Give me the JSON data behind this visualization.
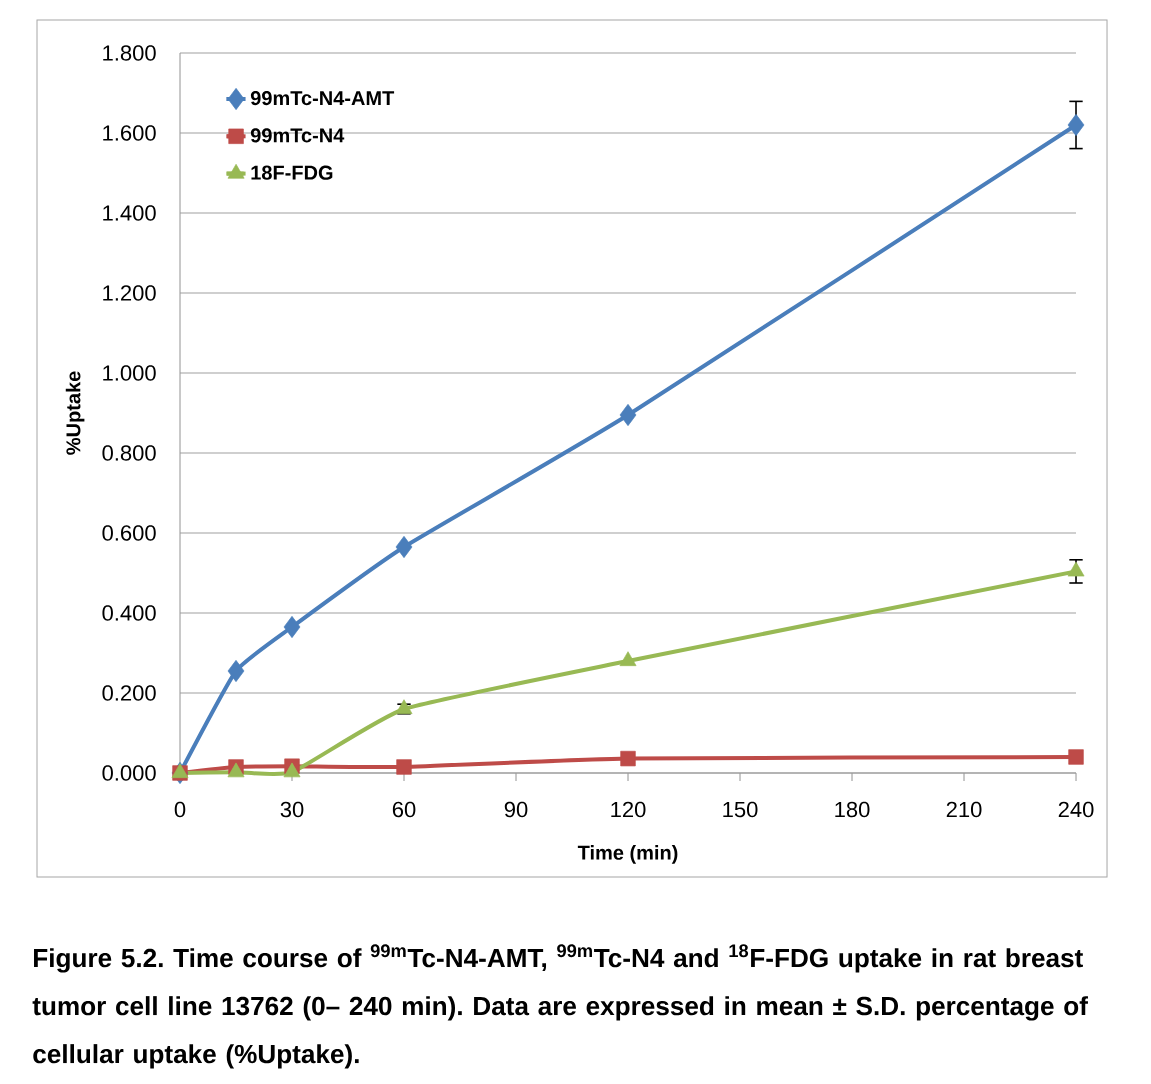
{
  "chart_data": {
    "type": "line",
    "xlabel": "Time (min)",
    "ylabel": "%Uptake",
    "x": [
      0,
      15,
      30,
      60,
      120,
      240
    ],
    "series": [
      {
        "name": "99mTc-N4-AMT",
        "color": "#4a7ebb",
        "marker": "diamond",
        "values": [
          0.0,
          0.255,
          0.365,
          0.565,
          0.895,
          1.62
        ],
        "errors": [
          null,
          null,
          null,
          null,
          null,
          0.059
        ]
      },
      {
        "name": "99mTc-N4",
        "color": "#be4b48",
        "marker": "square",
        "values": [
          0.0,
          0.015,
          0.017,
          0.015,
          0.036,
          0.04
        ]
      },
      {
        "name": "18F-FDG",
        "color": "#98b954",
        "marker": "triangle",
        "values": [
          0.0,
          0.002,
          0.002,
          0.16,
          0.28,
          0.504
        ],
        "errors": [
          null,
          null,
          null,
          0.012,
          null,
          0.029
        ]
      }
    ],
    "xlim": [
      0,
      240
    ],
    "xticks": [
      0,
      30,
      60,
      90,
      120,
      150,
      180,
      210,
      240
    ],
    "ylim": [
      0,
      1.8
    ],
    "yticks": [
      {
        "value": 0,
        "label": "0.000"
      },
      {
        "value": 0.2,
        "label": "0.200"
      },
      {
        "value": 0.4,
        "label": "0.400"
      },
      {
        "value": 0.6,
        "label": "0.600"
      },
      {
        "value": 0.8,
        "label": "0.800"
      },
      {
        "value": 1.0,
        "label": "1.000"
      },
      {
        "value": 1.2,
        "label": "1.200"
      },
      {
        "value": 1.4,
        "label": "1.400"
      },
      {
        "value": 1.6,
        "label": "1.600"
      },
      {
        "value": 1.8,
        "label": "1.800"
      }
    ],
    "grid": "y",
    "legend": "top left",
    "annotations": [
      "Figure 5.2. Time course of $^{99m}$Tc-N4-AMT, $^{99m}$Tc-N4 and $^{18}$F-FDG uptake in rat breast tumor cell line 13762 (0– 240 min). Data are expressed in mean ± S.D. percentage of cellular uptake (%Uptake)."
    ]
  }
}
